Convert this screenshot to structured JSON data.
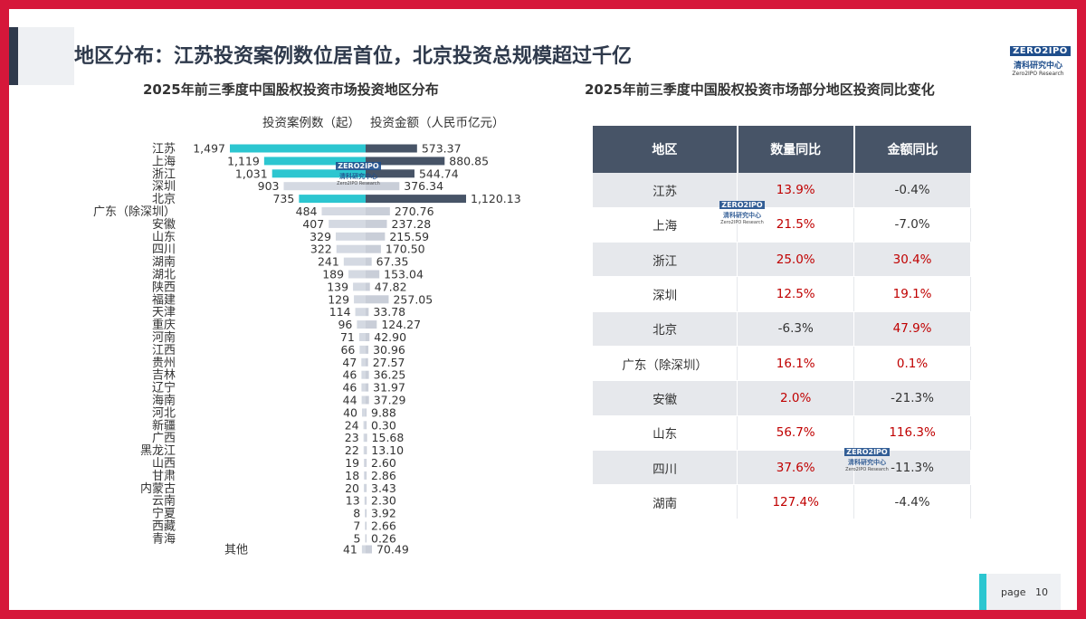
{
  "page": {
    "title": "地区分布：江苏投资案例数位居首位，北京投资总规模超过千亿",
    "page_label": "page",
    "page_number": "10"
  },
  "brand": {
    "logo_text": "ZERO2IPO",
    "name_cn": "清科研究中心",
    "name_en": "Zero2IPO Research"
  },
  "colors": {
    "frame": "#d6173a",
    "title": "#2f3a4c",
    "cases_highlight": "#2cc6d0",
    "cases_bar": "#d4d9e2",
    "amount_highlight": "#475467",
    "amount_bar": "#c9ced8",
    "table_header": "#475467",
    "positive": "#c00000"
  },
  "chart_data": [
    {
      "type": "bar",
      "orientation": "horizontal-butterfly",
      "title": "2025年前三季度中国股权投资市场投资地区分布",
      "left_series_label": "投资案例数（起）",
      "right_series_label": "投资金额（人民币亿元）",
      "categories": [
        "江苏",
        "上海",
        "浙江",
        "深圳",
        "北京",
        "广东（除深圳）",
        "安徽",
        "山东",
        "四川",
        "湖南",
        "湖北",
        "陕西",
        "福建",
        "天津",
        "重庆",
        "河南",
        "江西",
        "贵州",
        "吉林",
        "辽宁",
        "海南",
        "河北",
        "新疆",
        "广西",
        "黑龙江",
        "山西",
        "甘肃",
        "内蒙古",
        "云南",
        "宁夏",
        "西藏",
        "青海",
        "其他"
      ],
      "series": [
        {
          "name": "投资案例数（起）",
          "values": [
            1497,
            1119,
            1031,
            903,
            735,
            484,
            407,
            329,
            322,
            241,
            189,
            139,
            129,
            114,
            96,
            71,
            66,
            47,
            46,
            46,
            44,
            40,
            24,
            23,
            22,
            19,
            18,
            20,
            13,
            8,
            7,
            5,
            41
          ],
          "labels": [
            "1,497",
            "1,119",
            "1,031",
            "903",
            "735",
            "484",
            "407",
            "329",
            "322",
            "241",
            "189",
            "139",
            "129",
            "114",
            "96",
            "71",
            "66",
            "47",
            "46",
            "46",
            "44",
            "40",
            "24",
            "23",
            "22",
            "19",
            "18",
            "20",
            "13",
            "8",
            "7",
            "5",
            "41"
          ]
        },
        {
          "name": "投资金额（人民币亿元）",
          "values": [
            573.37,
            880.85,
            544.74,
            376.34,
            1120.13,
            270.76,
            237.28,
            215.59,
            170.5,
            67.35,
            153.04,
            47.82,
            257.05,
            33.78,
            124.27,
            42.9,
            30.96,
            27.57,
            36.25,
            31.97,
            37.29,
            9.88,
            0.3,
            15.68,
            13.1,
            2.6,
            2.86,
            3.43,
            2.3,
            3.92,
            2.66,
            0.26,
            70.49
          ],
          "labels": [
            "573.37",
            "880.85",
            "544.74",
            "376.34",
            "1,120.13",
            "270.76",
            "237.28",
            "215.59",
            "170.50",
            "67.35",
            "153.04",
            "47.82",
            "257.05",
            "33.78",
            "124.27",
            "42.90",
            "30.96",
            "27.57",
            "36.25",
            "31.97",
            "37.29",
            "9.88",
            "0.30",
            "15.68",
            "13.10",
            "2.60",
            "2.86",
            "3.43",
            "2.30",
            "3.92",
            "2.66",
            "0.26",
            "70.49"
          ]
        }
      ],
      "highlighted_categories": [
        "江苏",
        "上海",
        "浙江",
        "北京"
      ]
    },
    {
      "type": "table",
      "title": "2025年前三季度中国股权投资市场部分地区投资同比变化",
      "columns": [
        "地区",
        "数量同比",
        "金额同比"
      ],
      "rows": [
        [
          "江苏",
          "13.9%",
          "-0.4%"
        ],
        [
          "上海",
          "21.5%",
          "-7.0%"
        ],
        [
          "浙江",
          "25.0%",
          "30.4%"
        ],
        [
          "深圳",
          "12.5%",
          "19.1%"
        ],
        [
          "北京",
          "-6.3%",
          "47.9%"
        ],
        [
          "广东（除深圳）",
          "16.1%",
          "0.1%"
        ],
        [
          "安徽",
          "2.0%",
          "-21.3%"
        ],
        [
          "山东",
          "56.7%",
          "116.3%"
        ],
        [
          "四川",
          "37.6%",
          "-11.3%"
        ],
        [
          "湖南",
          "127.4%",
          "-4.4%"
        ]
      ]
    }
  ]
}
